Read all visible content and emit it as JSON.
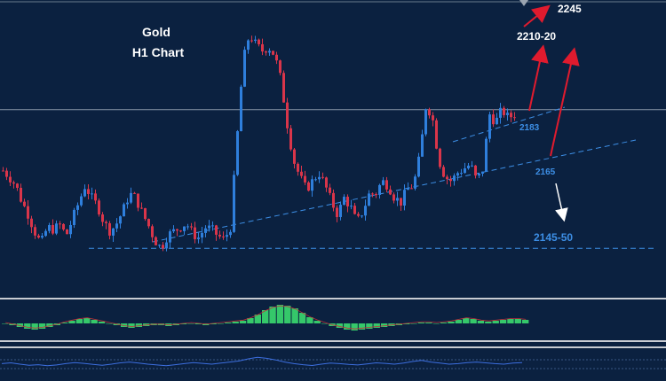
{
  "chart_data": {
    "type": "candlestick",
    "title": "Gold",
    "subtitle": "H1 Chart",
    "ylim": [
      2125,
      2260
    ],
    "bar_count": 145,
    "price_path": [
      2183,
      2180,
      2176,
      2168,
      2162,
      2154,
      2148,
      2156,
      2155,
      2157,
      2152,
      2160,
      2168,
      2176,
      2170,
      2166,
      2158,
      2154,
      2158,
      2164,
      2172,
      2170,
      2163,
      2157,
      2150,
      2146,
      2152,
      2154,
      2156,
      2158,
      2153,
      2151,
      2156,
      2155,
      2152,
      2150,
      2156,
      2196,
      2235,
      2248,
      2243,
      2240,
      2242,
      2238,
      2226,
      2205,
      2188,
      2180,
      2174,
      2178,
      2182,
      2176,
      2168,
      2162,
      2170,
      2166,
      2158,
      2164,
      2172,
      2172,
      2178,
      2176,
      2170,
      2168,
      2174,
      2176,
      2190,
      2215,
      2208,
      2188,
      2180,
      2178,
      2182,
      2184,
      2186,
      2178,
      2184,
      2210,
      2206,
      2212,
      2208,
      2210
    ],
    "levels": [
      {
        "label": "2245",
        "value": 2258
      },
      {
        "label": "2210-20",
        "value": 2243
      },
      {
        "label": "2183",
        "value": 2190
      },
      {
        "label": "2165",
        "value": 2170
      },
      {
        "label": "2145-50",
        "value": 2146
      }
    ],
    "horizontal_line": 2212,
    "support_line": 2146,
    "colors": {
      "background": "#0b2140",
      "bull": "#2f7fdc",
      "bear": "#d9354a",
      "label_blue": "#3d8fe6",
      "arrow_red": "#e01b2e",
      "arrow_white": "#ffffff",
      "histogram": "#35c86a",
      "histogram_line": "#c0303a",
      "oscillator": "#3d6fe0"
    },
    "indicator_histogram": [
      0,
      -2,
      -4,
      -6,
      -7,
      -6,
      -4,
      -2,
      1,
      3,
      5,
      6,
      4,
      2,
      0,
      -2,
      -4,
      -5,
      -4,
      -3,
      -2,
      -2,
      -3,
      -2,
      -1,
      0,
      -1,
      -2,
      -1,
      0,
      1,
      2,
      3,
      6,
      10,
      15,
      19,
      21,
      20,
      17,
      12,
      7,
      3,
      0,
      -3,
      -5,
      -7,
      -8,
      -7,
      -6,
      -5,
      -4,
      -3,
      -2,
      -1,
      0,
      1,
      1,
      0,
      1,
      2,
      4,
      6,
      5,
      3,
      2,
      3,
      4,
      5,
      5,
      4
    ],
    "oscillator_path": [
      52,
      55,
      50,
      46,
      48,
      44,
      47,
      52,
      56,
      53,
      49,
      46,
      50,
      55,
      58,
      54,
      50,
      47,
      44,
      48,
      52,
      56,
      53,
      50,
      54,
      58,
      62,
      70,
      76,
      72,
      66,
      58,
      52,
      48,
      45,
      50,
      54,
      52,
      49,
      47,
      51,
      55,
      53,
      50,
      54,
      60,
      64,
      58,
      54,
      50,
      52,
      56,
      58,
      55,
      52,
      50,
      54,
      56
    ]
  }
}
